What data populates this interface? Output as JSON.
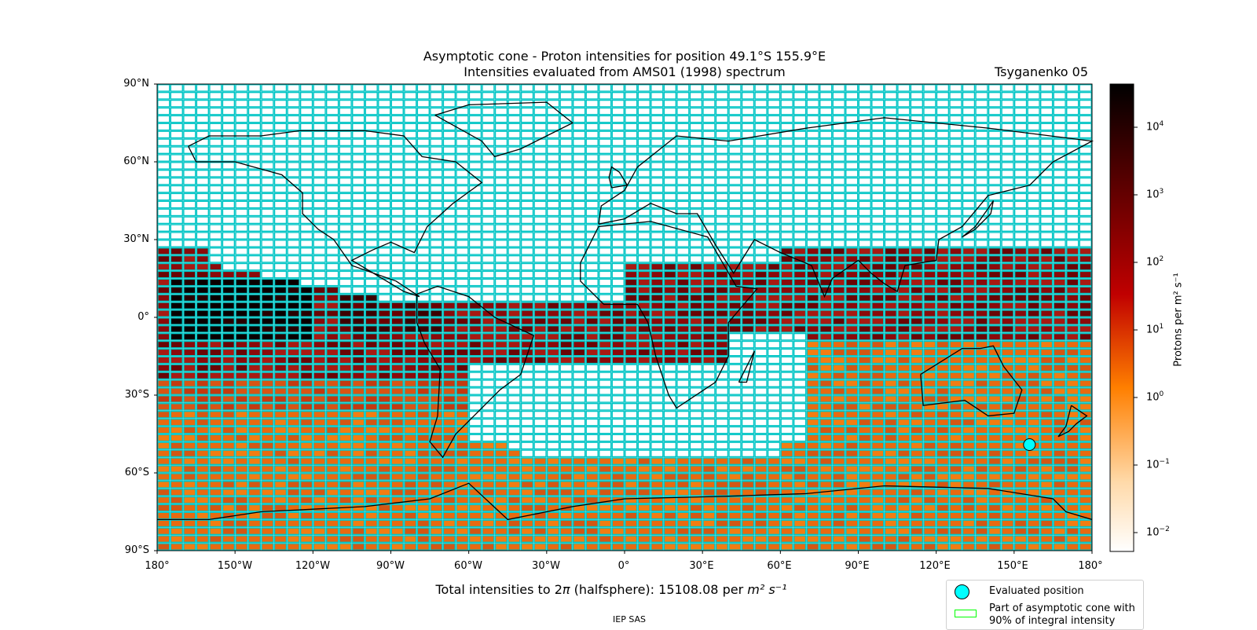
{
  "title_line1": "Asymptotic cone - Proton intensities for position 49.1°S 155.9°E",
  "title_line2": "Intensities evaluated from AMS01 (1998) spectrum",
  "model": "Tsyganenko 05",
  "lat_labels": [
    "90°N",
    "60°N",
    "30°N",
    "0°",
    "30°S",
    "60°S",
    "90°S"
  ],
  "lon_labels": [
    "180°",
    "150°W",
    "120°W",
    "90°W",
    "60°W",
    "30°W",
    "0°",
    "30°E",
    "60°E",
    "90°E",
    "120°E",
    "150°E",
    "180°"
  ],
  "total_prefix": "Total intensities to 2",
  "total_pi": "π",
  "total_mid": " (halfsphere): 15108.08 per ",
  "total_unit": "m² s⁻¹",
  "footer": "IEP SAS",
  "legend": {
    "evaluated": "Evaluated position",
    "cone_line1": "Part of asymptotic cone with",
    "cone_line2": "90% of integral intensity"
  },
  "colorbar": {
    "label": "Protons per m² s⁻¹",
    "ticks": [
      {
        "base": "10",
        "exp": "4"
      },
      {
        "base": "10",
        "exp": "3"
      },
      {
        "base": "10",
        "exp": "2"
      },
      {
        "base": "10",
        "exp": "1"
      },
      {
        "base": "10",
        "exp": "0"
      },
      {
        "base": "10",
        "exp": "−1"
      },
      {
        "base": "10",
        "exp": "−2"
      }
    ],
    "log_min": -2.3,
    "log_max": 4.6
  },
  "evaluated_position": {
    "lat": -49.1,
    "lon": 155.9
  },
  "colors": {
    "grid": "#00c5c5",
    "marker": "#00ffff",
    "cone": "#00ff00"
  }
}
